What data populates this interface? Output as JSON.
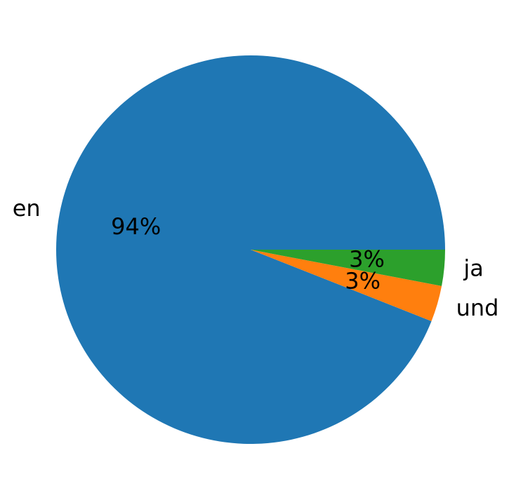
{
  "chart_data": {
    "type": "pie",
    "categories": [
      "en",
      "und",
      "ja"
    ],
    "values": [
      94,
      3,
      3
    ],
    "value_labels": [
      "94%",
      "3%",
      "3%"
    ],
    "colors": [
      "#1f77b4",
      "#ff7f0e",
      "#2ca02c"
    ],
    "start_angle": 0
  }
}
